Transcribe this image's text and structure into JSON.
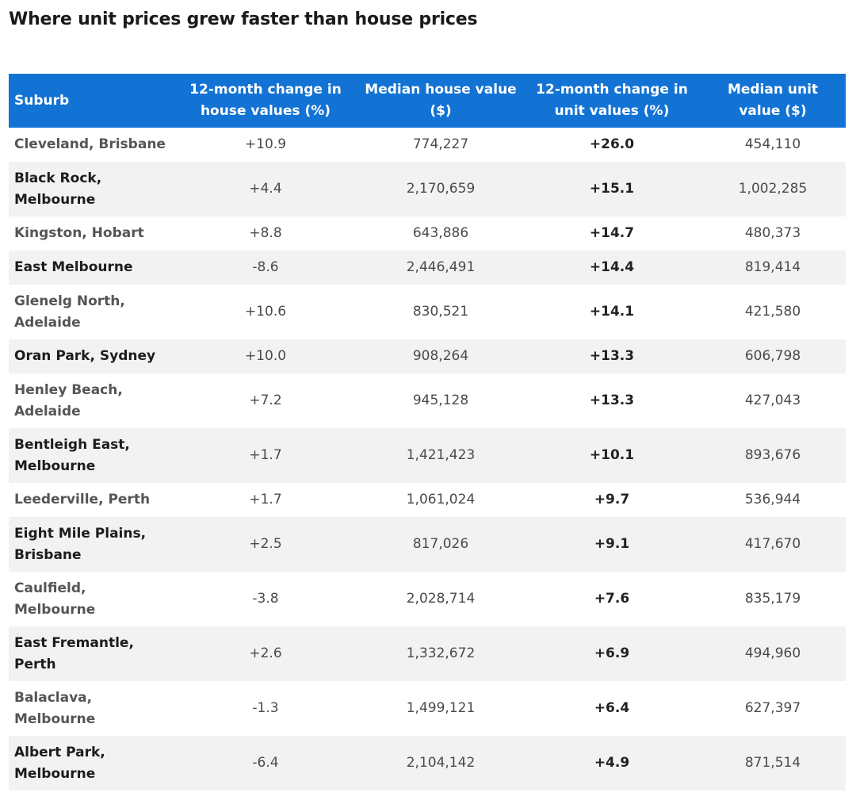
{
  "title": "Where unit prices grew faster than house prices",
  "colors": {
    "header_bg": "#1273d4",
    "header_text": "#ffffff",
    "stripe_bg": "#f2f2f2"
  },
  "table": {
    "headers": [
      "Suburb",
      "12-month change in house values (%)",
      "Median house value ($)",
      "12-month change in unit values (%)",
      "Median unit value ($)"
    ],
    "rows": [
      {
        "suburb": "Cleveland, Brisbane",
        "house_change": "+10.9",
        "house_value": "774,227",
        "unit_change": "+26.0",
        "unit_value": "454,110"
      },
      {
        "suburb": "Black Rock, Melbourne",
        "house_change": "+4.4",
        "house_value": "2,170,659",
        "unit_change": "+15.1",
        "unit_value": "1,002,285"
      },
      {
        "suburb": "Kingston, Hobart",
        "house_change": "+8.8",
        "house_value": "643,886",
        "unit_change": "+14.7",
        "unit_value": "480,373"
      },
      {
        "suburb": "East Melbourne",
        "house_change": "-8.6",
        "house_value": "2,446,491",
        "unit_change": "+14.4",
        "unit_value": "819,414"
      },
      {
        "suburb": "Glenelg North, Adelaide",
        "house_change": "+10.6",
        "house_value": "830,521",
        "unit_change": "+14.1",
        "unit_value": "421,580"
      },
      {
        "suburb": "Oran Park, Sydney",
        "house_change": "+10.0",
        "house_value": "908,264",
        "unit_change": "+13.3",
        "unit_value": "606,798"
      },
      {
        "suburb": "Henley Beach, Adelaide",
        "house_change": "+7.2",
        "house_value": "945,128",
        "unit_change": "+13.3",
        "unit_value": "427,043"
      },
      {
        "suburb": "Bentleigh East, Melbourne",
        "house_change": "+1.7",
        "house_value": "1,421,423",
        "unit_change": "+10.1",
        "unit_value": "893,676"
      },
      {
        "suburb": "Leederville, Perth",
        "house_change": "+1.7",
        "house_value": "1,061,024",
        "unit_change": "+9.7",
        "unit_value": "536,944"
      },
      {
        "suburb": "Eight Mile Plains, Brisbane",
        "house_change": "+2.5",
        "house_value": "817,026",
        "unit_change": "+9.1",
        "unit_value": "417,670"
      },
      {
        "suburb": "Caulfield, Melbourne",
        "house_change": "-3.8",
        "house_value": "2,028,714",
        "unit_change": "+7.6",
        "unit_value": "835,179"
      },
      {
        "suburb": "East Fremantle, Perth",
        "house_change": "+2.6",
        "house_value": "1,332,672",
        "unit_change": "+6.9",
        "unit_value": "494,960"
      },
      {
        "suburb": "Balaclava, Melbourne",
        "house_change": "-1.3",
        "house_value": "1,499,121",
        "unit_change": "+6.4",
        "unit_value": "627,397"
      },
      {
        "suburb": "Albert Park, Melbourne",
        "house_change": "-6.4",
        "house_value": "2,104,142",
        "unit_change": "+4.9",
        "unit_value": "871,514"
      }
    ]
  }
}
